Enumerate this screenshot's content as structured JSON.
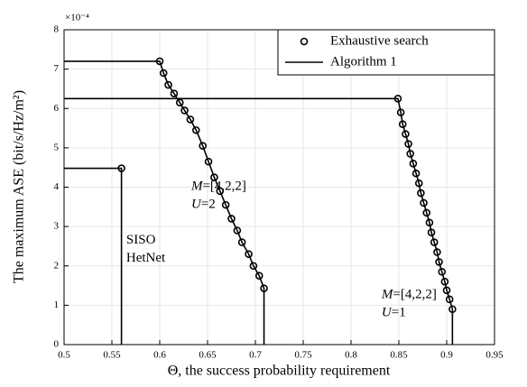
{
  "chart_data": {
    "type": "line",
    "xlabel": "Θ, the success probability requirement",
    "ylabel": "The maximum ASE (bit/s/Hz/m²)",
    "y_exponent": "×10⁻⁴",
    "xlim": [
      0.5,
      0.95
    ],
    "xticks": [
      0.5,
      0.55,
      0.6,
      0.65,
      0.7,
      0.75,
      0.8,
      0.85,
      0.9,
      0.95
    ],
    "ylim": [
      0,
      8
    ],
    "yticks": [
      0,
      1,
      2,
      3,
      4,
      5,
      6,
      7,
      8
    ],
    "grid": true,
    "legend": "top-right",
    "series": [
      {
        "name": "Exhaustive search",
        "style": "marker",
        "color": "#000000",
        "curves": [
          {
            "x": [
              0.56
            ],
            "y": [
              4.48
            ]
          },
          {
            "x": [
              0.6,
              0.604,
              0.609,
              0.615,
              0.621,
              0.626,
              0.632,
              0.638,
              0.645,
              0.651,
              0.657,
              0.663,
              0.669,
              0.675,
              0.681,
              0.686,
              0.693,
              0.698,
              0.704,
              0.709
            ],
            "y": [
              7.2,
              6.9,
              6.6,
              6.38,
              6.15,
              5.95,
              5.72,
              5.45,
              5.05,
              4.65,
              4.25,
              3.9,
              3.55,
              3.2,
              2.9,
              2.6,
              2.3,
              2.0,
              1.75,
              1.43
            ]
          },
          {
            "x": [
              0.849,
              0.852,
              0.854,
              0.857,
              0.86,
              0.862,
              0.865,
              0.868,
              0.871,
              0.873,
              0.876,
              0.879,
              0.882,
              0.884,
              0.887,
              0.89,
              0.892,
              0.895,
              0.898,
              0.9,
              0.903,
              0.906
            ],
            "y": [
              6.25,
              5.9,
              5.6,
              5.35,
              5.1,
              4.85,
              4.6,
              4.35,
              4.1,
              3.85,
              3.6,
              3.35,
              3.1,
              2.85,
              2.6,
              2.35,
              2.1,
              1.85,
              1.6,
              1.38,
              1.15,
              0.9
            ]
          }
        ]
      },
      {
        "name": "Algorithm 1",
        "style": "line",
        "color": "#000000",
        "curves": [
          {
            "x": [
              0.5,
              0.56,
              0.56
            ],
            "y": [
              4.48,
              4.48,
              0
            ]
          },
          {
            "x": [
              0.5,
              0.6,
              0.604,
              0.609,
              0.615,
              0.621,
              0.626,
              0.632,
              0.638,
              0.645,
              0.651,
              0.657,
              0.663,
              0.669,
              0.675,
              0.681,
              0.686,
              0.693,
              0.698,
              0.704,
              0.709,
              0.709
            ],
            "y": [
              7.2,
              7.2,
              6.9,
              6.6,
              6.38,
              6.15,
              5.95,
              5.72,
              5.45,
              5.05,
              4.65,
              4.25,
              3.9,
              3.55,
              3.2,
              2.9,
              2.6,
              2.3,
              2.0,
              1.75,
              1.43,
              0
            ]
          },
          {
            "x": [
              0.5,
              0.849,
              0.852,
              0.854,
              0.857,
              0.86,
              0.862,
              0.865,
              0.868,
              0.871,
              0.873,
              0.876,
              0.879,
              0.882,
              0.884,
              0.887,
              0.89,
              0.892,
              0.895,
              0.898,
              0.9,
              0.903,
              0.906,
              0.906
            ],
            "y": [
              6.25,
              6.25,
              5.9,
              5.6,
              5.35,
              5.1,
              4.85,
              4.6,
              4.35,
              4.1,
              3.85,
              3.6,
              3.35,
              3.1,
              2.85,
              2.6,
              2.35,
              2.1,
              1.85,
              1.6,
              1.38,
              1.15,
              0.9,
              0
            ]
          }
        ]
      }
    ],
    "annotations": [
      {
        "lines": [
          "SISO",
          "HetNet"
        ]
      },
      {
        "lines": [
          "M=[4,2,2]",
          "U=2"
        ]
      },
      {
        "lines": [
          "M=[4,2,2]",
          "U=1"
        ]
      }
    ]
  }
}
